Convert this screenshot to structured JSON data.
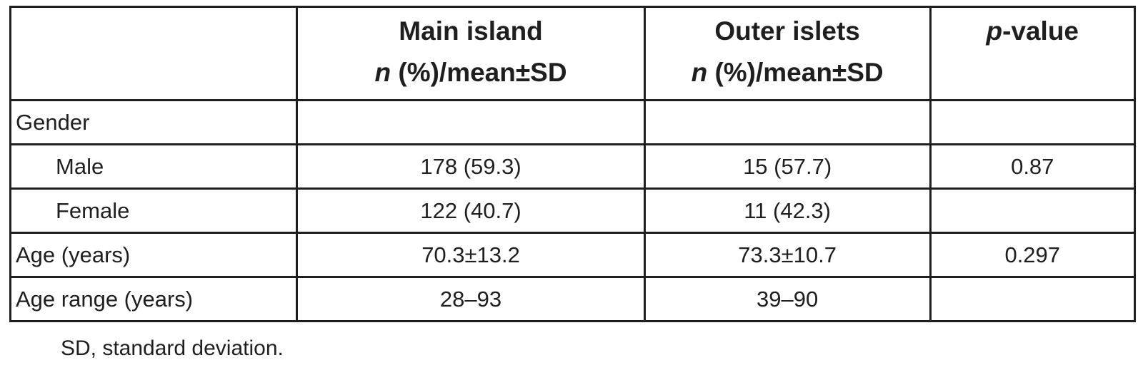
{
  "table": {
    "header": {
      "row_label": "",
      "main_island": {
        "title": "Main island",
        "stat_italic": "n",
        "stat_rest": " (%)/mean±SD"
      },
      "outer_islets": {
        "title": "Outer islets",
        "stat_italic": "n",
        "stat_rest": " (%)/mean±SD"
      },
      "p_value": {
        "italic": "p",
        "rest": "-value"
      }
    },
    "rows": [
      {
        "label": "Gender",
        "main_island": "",
        "outer_islets": "",
        "p_value": ""
      },
      {
        "label": "Male",
        "main_island": "178 (59.3)",
        "outer_islets": "15 (57.7)",
        "p_value": "0.87"
      },
      {
        "label": "Female",
        "main_island": "122 (40.7)",
        "outer_islets": "11 (42.3)",
        "p_value": ""
      },
      {
        "label": "Age (years)",
        "main_island": "70.3±13.2",
        "outer_islets": "73.3±10.7",
        "p_value": "0.297"
      },
      {
        "label": "Age range (years)",
        "main_island": "28–93",
        "outer_islets": "39–90",
        "p_value": ""
      }
    ],
    "footnote": "SD, standard deviation.",
    "colors": {
      "border": "#1f1f1f",
      "text": "#1f1f1f",
      "background": "#ffffff"
    }
  }
}
